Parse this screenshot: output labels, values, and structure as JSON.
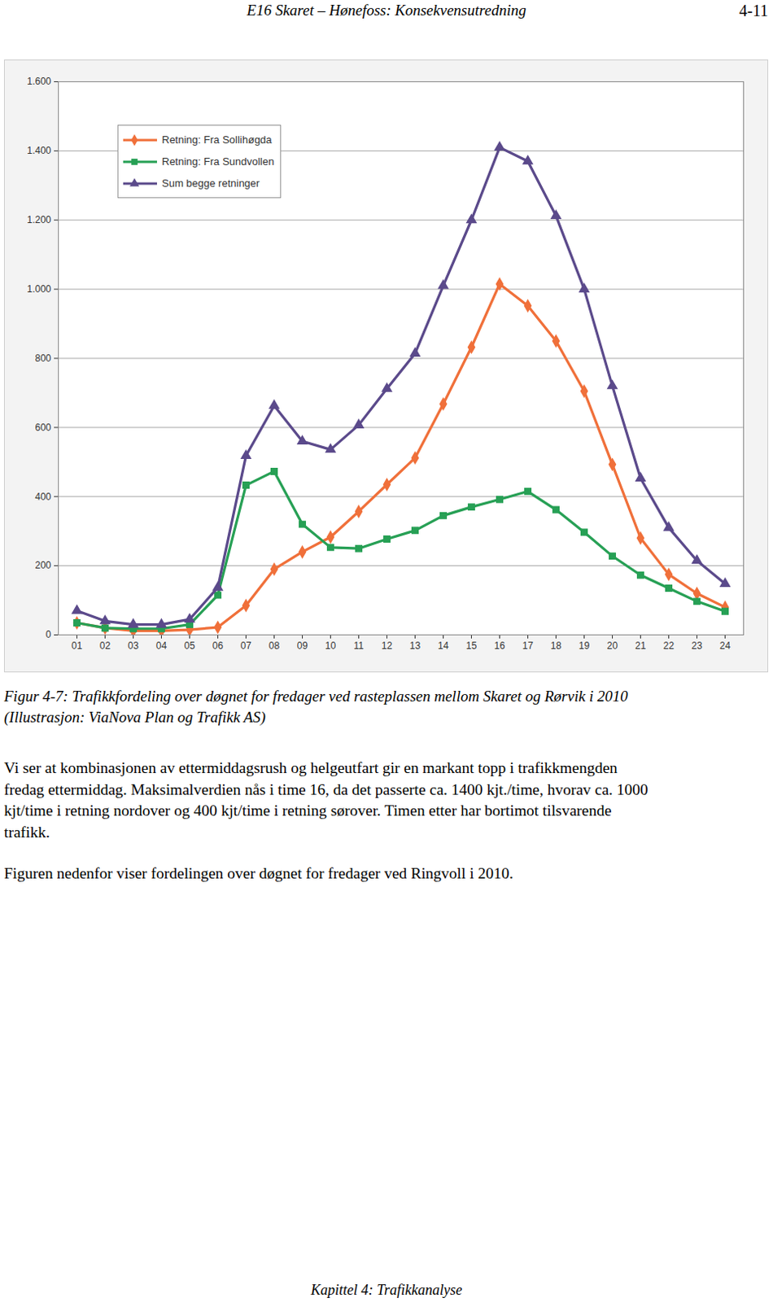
{
  "header": {
    "title": "E16 Skaret – Hønefoss: Konsekvensutredning",
    "page": "4-11"
  },
  "chart_data": {
    "type": "line",
    "categories": [
      "01",
      "02",
      "03",
      "04",
      "05",
      "06",
      "07",
      "08",
      "09",
      "10",
      "11",
      "12",
      "13",
      "14",
      "15",
      "16",
      "17",
      "18",
      "19",
      "20",
      "21",
      "22",
      "23",
      "24"
    ],
    "series": [
      {
        "name": "Retning: Fra Sollihøgda",
        "color": "#f0703a",
        "marker": "diamond",
        "values": [
          35,
          20,
          12,
          12,
          15,
          22,
          85,
          190,
          240,
          283,
          357,
          435,
          512,
          668,
          832,
          1015,
          952,
          850,
          705,
          493,
          280,
          175,
          120,
          80
        ]
      },
      {
        "name": "Retning: Fra Sundvollen",
        "color": "#27a055",
        "marker": "square",
        "values": [
          35,
          20,
          18,
          18,
          30,
          115,
          433,
          473,
          320,
          253,
          250,
          277,
          302,
          345,
          370,
          392,
          415,
          362,
          297,
          228,
          173,
          135,
          97,
          68
        ]
      },
      {
        "name": "Sum begge retninger",
        "color": "#5b4a8b",
        "marker": "triangle",
        "values": [
          70,
          40,
          30,
          30,
          45,
          137,
          518,
          663,
          560,
          536,
          607,
          712,
          814,
          1010,
          1200,
          1410,
          1370,
          1212,
          1000,
          720,
          453,
          310,
          215,
          148
        ]
      }
    ],
    "ylim": [
      0,
      1600
    ],
    "yticks": [
      0,
      200,
      400,
      600,
      800,
      {
        "value": 1000,
        "label": "1.000"
      },
      {
        "value": 1200,
        "label": "1.200"
      },
      {
        "value": 1400,
        "label": "1.400"
      },
      {
        "value": 1600,
        "label": "1.600"
      }
    ],
    "grid": true,
    "legend": "top-left"
  },
  "caption": [
    "Figur 4-7: Trafikkfordeling over døgnet for fredager ved rasteplassen mellom Skaret og Rørvik i 2010",
    "(Illustrasjon: ViaNova Plan og Trafikk AS)"
  ],
  "paragraphs": [
    [
      "Vi ser at kombinasjonen av ettermiddagsrush og helgeutfart gir en markant topp i trafikkmengden",
      "fredag ettermiddag. Maksimalverdien nås i time 16, da det passerte ca. 1400 kjt./time, hvorav ca. 1000",
      "kjt/time i retning nordover og 400 kjt/time i retning sørover. Timen etter har bortimot tilsvarende",
      "trafikk."
    ],
    [
      "Figuren nedenfor viser fordelingen over døgnet for fredager ved Ringvoll i 2010."
    ]
  ],
  "footer": "Kapittel 4: Trafikkanalyse"
}
